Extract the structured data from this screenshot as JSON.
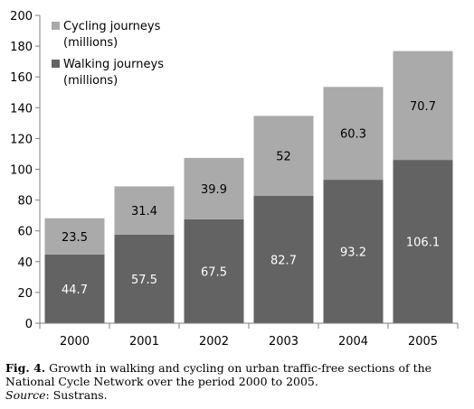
{
  "chart_data": {
    "type": "bar",
    "stacked": true,
    "categories": [
      "2000",
      "2001",
      "2002",
      "2003",
      "2004",
      "2005"
    ],
    "series": [
      {
        "name": "Walking journeys (millions)",
        "values": [
          44.7,
          57.5,
          67.5,
          82.7,
          93.2,
          106.1
        ],
        "color": "#636363",
        "label_color": "#ffffff"
      },
      {
        "name": "Cycling journeys (millions)",
        "values": [
          23.5,
          31.4,
          39.9,
          52,
          60.3,
          70.7
        ],
        "color": "#aaaaaa",
        "label_color": "#000000"
      }
    ],
    "legend": {
      "position": "top-left",
      "entries": [
        {
          "line1": "Cycling journeys",
          "line2": "(millions)",
          "color": "#aaaaaa"
        },
        {
          "line1": "Walking journeys",
          "line2": "(millions)",
          "color": "#636363"
        }
      ]
    },
    "ylim": [
      0,
      200
    ],
    "yticks": [
      0,
      20,
      40,
      60,
      80,
      100,
      120,
      140,
      160,
      180,
      200
    ],
    "grid": false,
    "xlabel": "",
    "ylabel": "",
    "title": ""
  },
  "caption": {
    "fig_label": "Fig. 4.",
    "text": "Growth in walking and cycling on urban traffic-free sections of the National Cycle Network over the period 2000 to 2005.",
    "source_label": "Source",
    "source_text": ": Sustrans."
  }
}
